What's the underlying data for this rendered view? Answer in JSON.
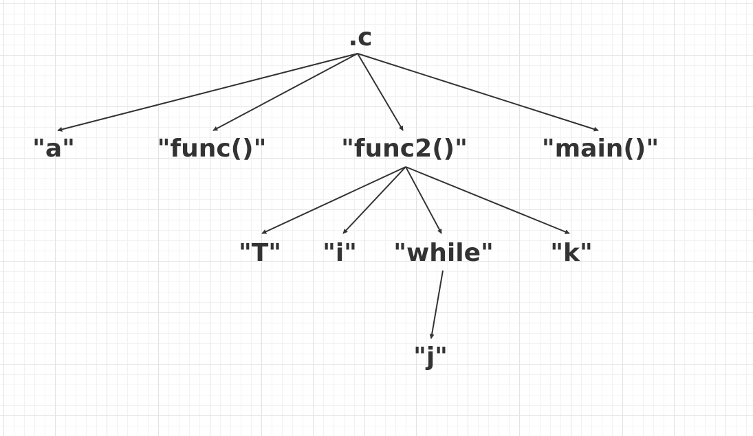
{
  "diagram": {
    "colors": {
      "text": "#333333",
      "arrow": "#333333",
      "grid_major": "#e3e3e3",
      "grid_minor": "#f2f2f2"
    },
    "nodes": {
      "root": ".c",
      "a": "\"a\"",
      "func": "\"func()\"",
      "func2": "\"func2()\"",
      "main": "\"main()\"",
      "T": "\"T\"",
      "i": "\"i\"",
      "while": "\"while\"",
      "k": "\"k\"",
      "j": "\"j\""
    },
    "edges": [
      [
        "root",
        "a"
      ],
      [
        "root",
        "func"
      ],
      [
        "root",
        "func2"
      ],
      [
        "root",
        "main"
      ],
      [
        "func2",
        "T"
      ],
      [
        "func2",
        "i"
      ],
      [
        "func2",
        "while"
      ],
      [
        "func2",
        "k"
      ],
      [
        "while",
        "j"
      ]
    ]
  }
}
